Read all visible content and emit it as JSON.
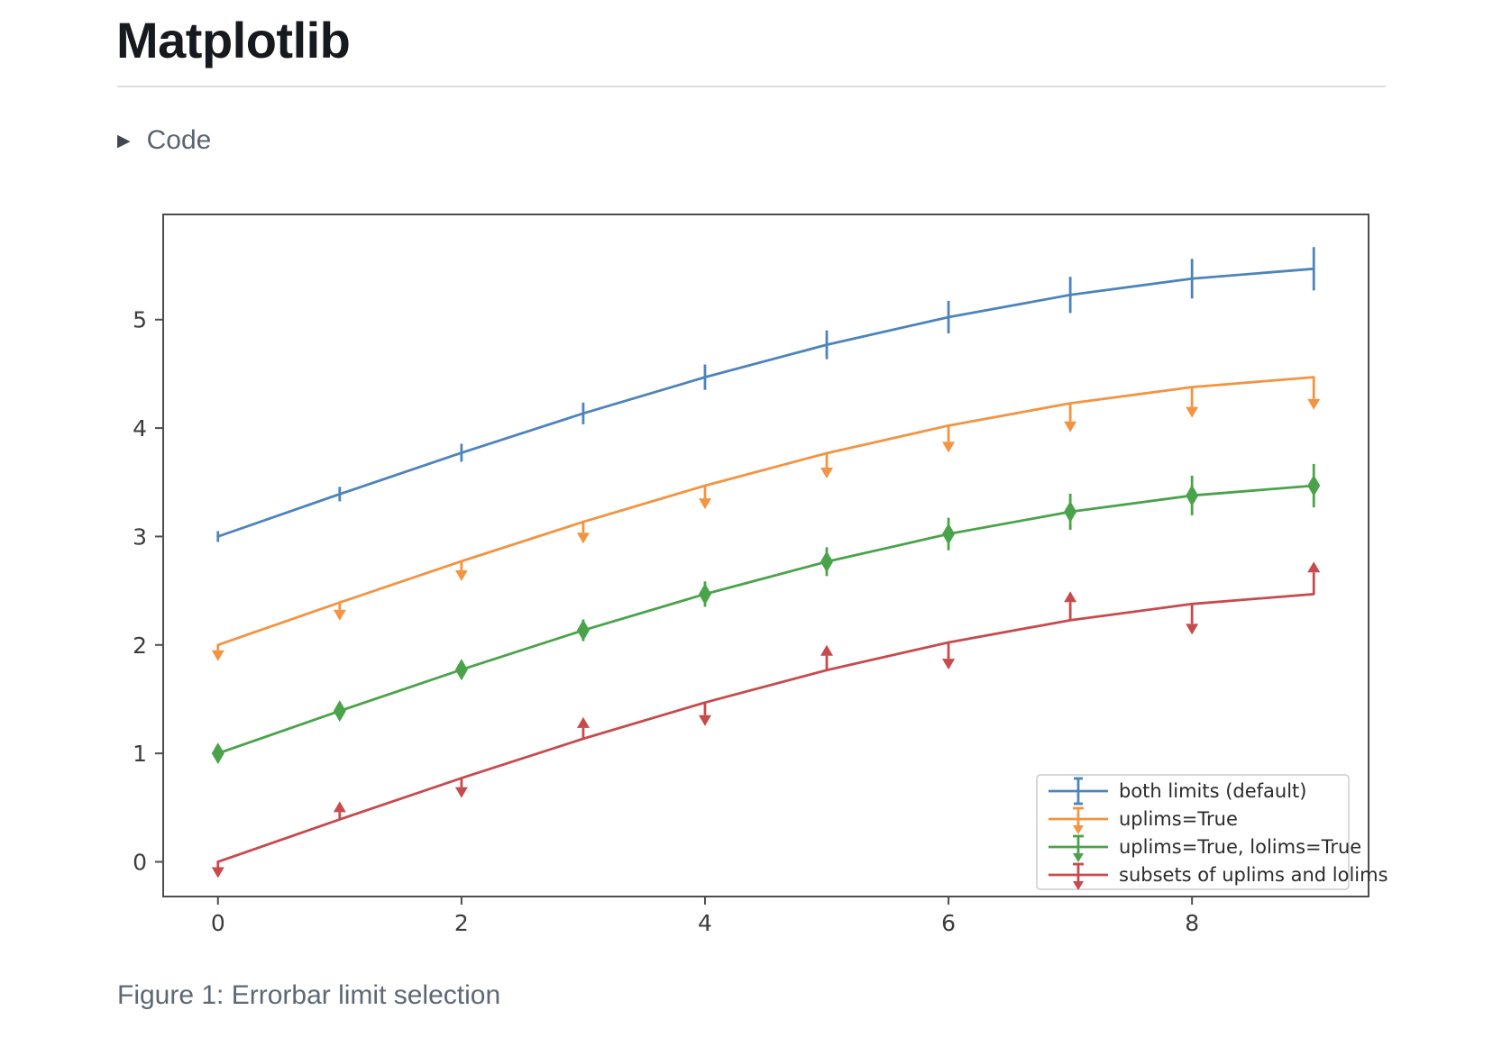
{
  "page": {
    "title": "Matplotlib",
    "code_section": {
      "label": "Code",
      "collapsed": true,
      "triangle_glyph": "▶"
    },
    "figure_caption": "Figure 1: Errorbar limit selection"
  },
  "colors": {
    "page_title": "#16191d",
    "code_label": "#5a6470",
    "caption_text": "#5d6876",
    "divider": "#d9dde1",
    "axis_spine": "#4d4d4d",
    "tick_label": "#3c3c3c",
    "legend_border": "#cccccc",
    "legend_text": "#2b2b2b",
    "series_blue": "#4c84bb",
    "series_orange": "#f29441",
    "series_green": "#4aa34a",
    "series_red": "#c74a4c"
  },
  "chart_data": {
    "type": "line",
    "title": "",
    "xlabel": "",
    "ylabel": "",
    "grid": false,
    "x": [
      0,
      1,
      2,
      3,
      4,
      5,
      6,
      7,
      8,
      9
    ],
    "yerr": [
      0.05,
      0.067,
      0.083,
      0.1,
      0.117,
      0.133,
      0.15,
      0.167,
      0.183,
      0.2
    ],
    "series": [
      {
        "name": "both limits (default)",
        "color": "#4c84bb",
        "limits": "both",
        "values": [
          3.0,
          3.391,
          3.772,
          4.135,
          4.469,
          4.768,
          5.023,
          5.228,
          5.378,
          5.469
        ]
      },
      {
        "name": "uplims=True",
        "color": "#f29441",
        "limits": "uplims",
        "values": [
          2.0,
          2.391,
          2.772,
          3.135,
          3.469,
          3.768,
          4.023,
          4.228,
          4.378,
          4.469
        ]
      },
      {
        "name": "uplims=True, lolims=True",
        "color": "#4aa34a",
        "limits": "uplims_lolims",
        "values": [
          1.0,
          1.391,
          1.772,
          2.135,
          2.469,
          2.768,
          3.023,
          3.228,
          3.378,
          3.469
        ]
      },
      {
        "name": "subsets of uplims and lolims",
        "color": "#c74a4c",
        "limits": "subsets",
        "uplims": [
          true,
          false,
          true,
          false,
          true,
          false,
          true,
          false,
          true,
          false
        ],
        "lolims": [
          false,
          true,
          false,
          true,
          false,
          true,
          false,
          true,
          false,
          true
        ],
        "values": [
          0.0,
          0.391,
          0.772,
          1.135,
          1.469,
          1.768,
          2.023,
          2.228,
          2.378,
          2.469
        ]
      }
    ],
    "xticks": [
      "0",
      "2",
      "4",
      "6",
      "8"
    ],
    "xtick_values": [
      0,
      2,
      4,
      6,
      8
    ],
    "yticks": [
      "0",
      "1",
      "2",
      "3",
      "4",
      "5"
    ],
    "ytick_values": [
      0,
      1,
      2,
      3,
      4,
      5
    ],
    "xlim": [
      -0.45,
      9.45
    ],
    "ylim": [
      -0.32,
      5.97
    ],
    "legend": {
      "position": "lower right",
      "entries": [
        "both limits (default)",
        "uplims=True",
        "uplims=True, lolims=True",
        "subsets of uplims and lolims"
      ]
    }
  }
}
